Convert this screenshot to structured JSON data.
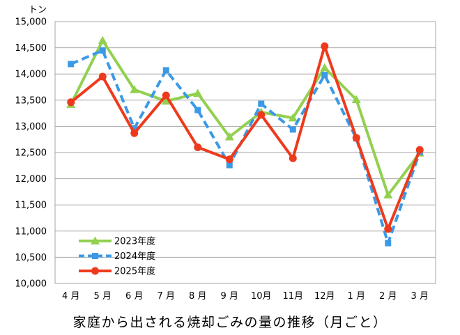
{
  "chart_data": {
    "type": "line",
    "title": "家庭から出される焼却ごみの量の推移（月ごと）",
    "xlabel": "",
    "ylabel": "トン",
    "categories": [
      "4 月",
      "5 月",
      "6 月",
      "7 月",
      "8 月",
      "9 月",
      "10月",
      "11月",
      "12月",
      "1 月",
      "2 月",
      "3 月"
    ],
    "ylim": [
      10000,
      15000
    ],
    "y_tick_step": 500,
    "y_tick_labels": [
      "10,000",
      "10,500",
      "11,000",
      "11,500",
      "12,000",
      "12,500",
      "13,000",
      "13,500",
      "14,000",
      "14,500",
      "15,000"
    ],
    "grid": true,
    "legend_position": "bottom-left",
    "series": [
      {
        "name": "2023年度",
        "color": "#92D050",
        "marker": "triangle",
        "line_style": "solid",
        "values": [
          13420,
          14640,
          13700,
          13480,
          13630,
          12800,
          13270,
          13160,
          14120,
          13510,
          11690,
          12490
        ]
      },
      {
        "name": "2024年度",
        "color": "#3B99E6",
        "marker": "square",
        "line_style": "dashed",
        "values": [
          14190,
          14450,
          12960,
          14070,
          13310,
          12260,
          13430,
          12940,
          13980,
          12770,
          10770,
          12510
        ]
      },
      {
        "name": "2025年度",
        "color": "#EE3A1C",
        "marker": "circle",
        "line_style": "solid",
        "values": [
          13460,
          13950,
          12870,
          13590,
          12600,
          12370,
          13220,
          12390,
          14530,
          12780,
          11040,
          12550
        ]
      }
    ],
    "gridline_color": "#A6A6A6"
  }
}
